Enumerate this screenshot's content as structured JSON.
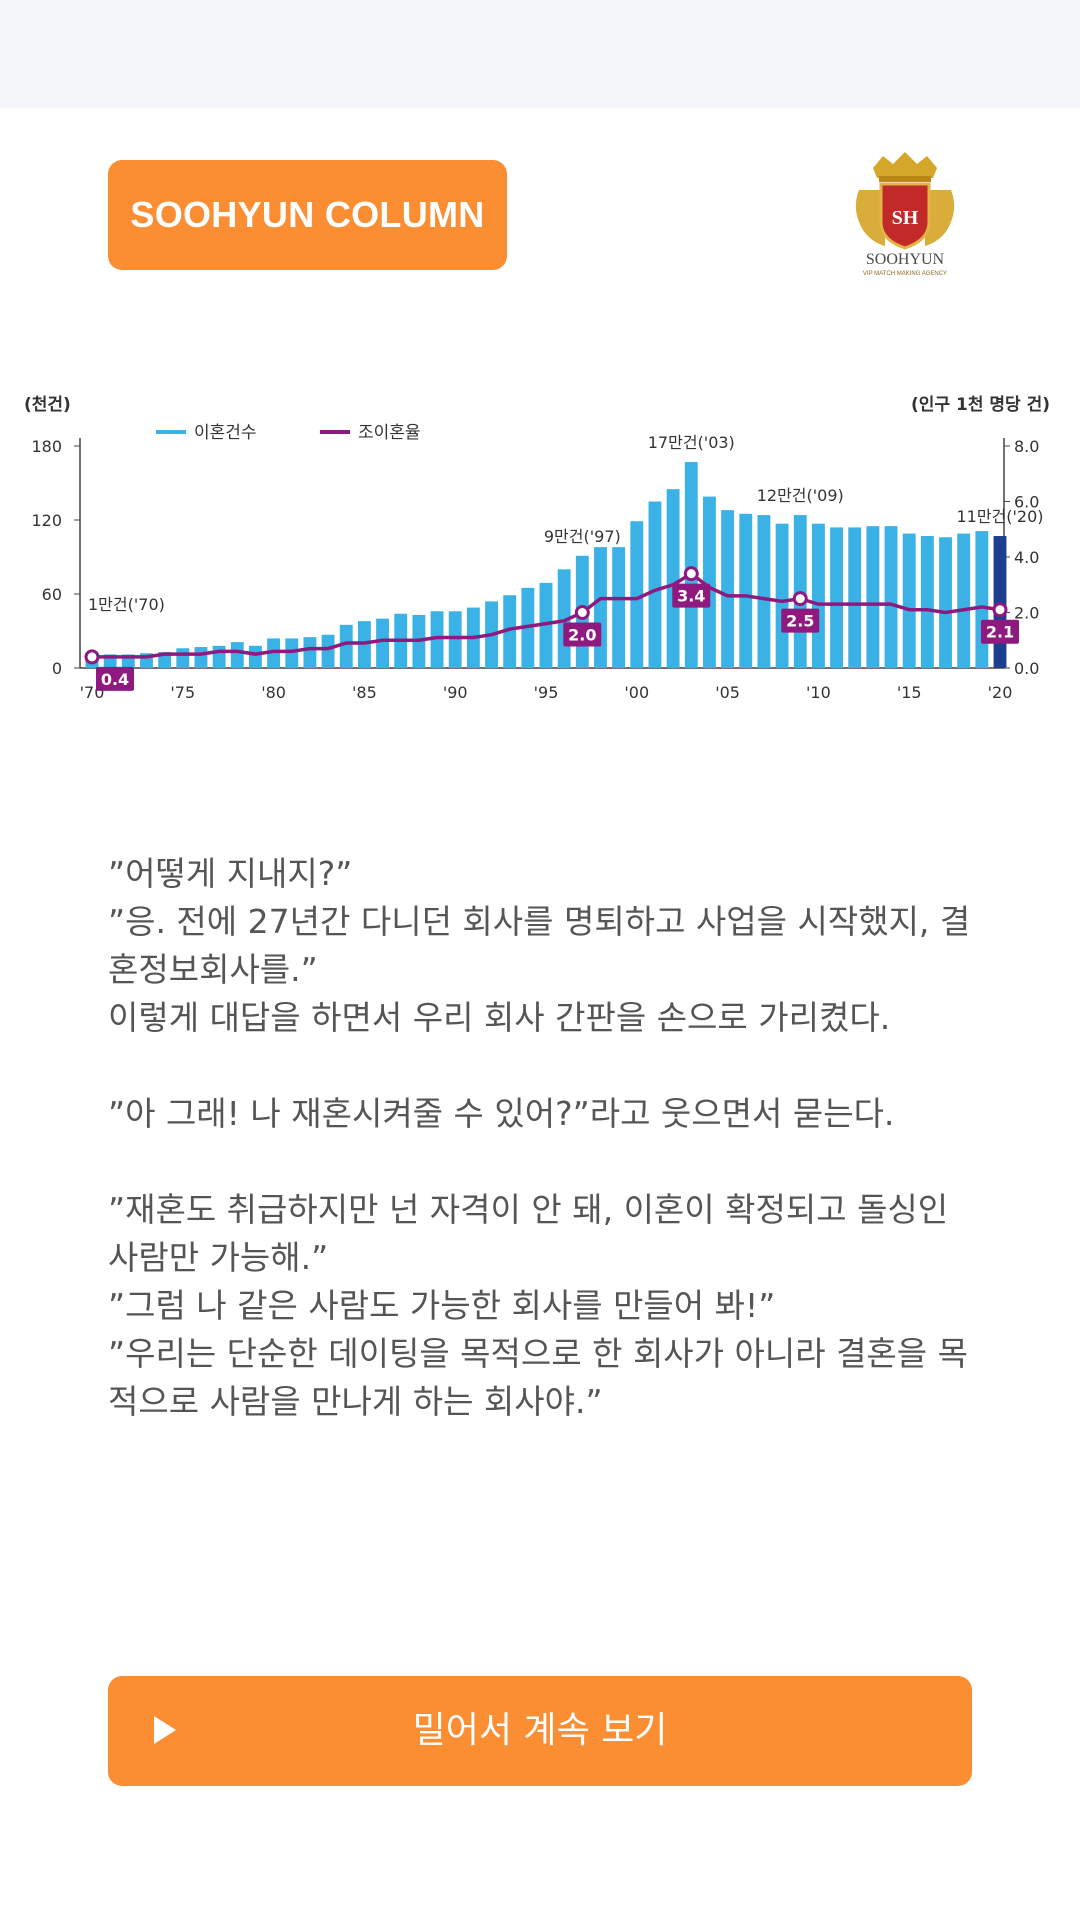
{
  "header": {
    "badge_label": "SOOHYUN COLUMN",
    "logo_monogram": "SH",
    "logo_name": "SOOHYUN",
    "logo_tagline": "VIP MATCH MAKING AGENCY"
  },
  "chart_data": {
    "type": "bar",
    "left_unit": "(천건)",
    "right_unit": "(인구 1천 명당 건)",
    "legend": [
      "이혼건수",
      "조이혼율"
    ],
    "x": [
      1970,
      1971,
      1972,
      1973,
      1974,
      1975,
      1976,
      1977,
      1978,
      1979,
      1980,
      1981,
      1982,
      1983,
      1984,
      1985,
      1986,
      1987,
      1988,
      1989,
      1990,
      1991,
      1992,
      1993,
      1994,
      1995,
      1996,
      1997,
      1998,
      1999,
      2000,
      2001,
      2002,
      2003,
      2004,
      2005,
      2006,
      2007,
      2008,
      2009,
      2010,
      2011,
      2012,
      2013,
      2014,
      2015,
      2016,
      2017,
      2018,
      2019,
      2020
    ],
    "x_tick_labels": [
      "'70",
      "'75",
      "'80",
      "'85",
      "'90",
      "'95",
      "'00",
      "'05",
      "'10",
      "'15",
      "'20"
    ],
    "series": [
      {
        "name": "이혼건수",
        "axis": "left",
        "values": [
          12,
          11,
          11,
          12,
          13,
          16,
          17,
          18,
          21,
          18,
          24,
          24,
          25,
          27,
          35,
          38,
          40,
          44,
          43,
          46,
          46,
          49,
          54,
          59,
          65,
          69,
          80,
          91,
          98,
          98,
          119,
          135,
          145,
          167,
          139,
          128,
          125,
          124,
          117,
          124,
          117,
          114,
          114,
          115,
          115,
          109,
          107,
          106,
          109,
          111,
          107
        ]
      },
      {
        "name": "조이혼율",
        "axis": "right",
        "values": [
          0.4,
          0.4,
          0.4,
          0.4,
          0.5,
          0.5,
          0.5,
          0.6,
          0.6,
          0.5,
          0.6,
          0.6,
          0.7,
          0.7,
          0.9,
          0.9,
          1.0,
          1.0,
          1.0,
          1.1,
          1.1,
          1.1,
          1.2,
          1.4,
          1.5,
          1.6,
          1.7,
          2.0,
          2.5,
          2.5,
          2.5,
          2.8,
          3.0,
          3.4,
          2.9,
          2.6,
          2.6,
          2.5,
          2.4,
          2.5,
          2.3,
          2.3,
          2.3,
          2.3,
          2.3,
          2.1,
          2.1,
          2.0,
          2.1,
          2.2,
          2.1
        ]
      }
    ],
    "bar_annotations": [
      {
        "x": 1970,
        "label": "1만건('70)"
      },
      {
        "x": 1997,
        "label": "9만건('97)"
      },
      {
        "x": 2003,
        "label": "17만건('03)"
      },
      {
        "x": 2009,
        "label": "12만건('09)"
      },
      {
        "x": 2020,
        "label": "11만건('20)"
      }
    ],
    "line_annotations": [
      {
        "x": 1970,
        "label": "0.4"
      },
      {
        "x": 1997,
        "label": "2.0"
      },
      {
        "x": 2003,
        "label": "3.4"
      },
      {
        "x": 2009,
        "label": "2.5"
      },
      {
        "x": 2020,
        "label": "2.1"
      }
    ],
    "left_ylim": [
      0,
      180
    ],
    "left_ticks": [
      "0",
      "60",
      "120",
      "180"
    ],
    "right_ylim": [
      0,
      8
    ],
    "right_ticks": [
      "0.0",
      "2.0",
      "4.0",
      "6.0",
      "8.0"
    ],
    "colors": {
      "bar": "#3bb2e6",
      "bar_last": "#1c3f8f",
      "line": "#8e1a80"
    }
  },
  "article": {
    "paragraphs": [
      "”어떻게 지내지?”",
      "”응. 전에 27년간 다니던 회사를 명퇴하고 사업을 시작했지, 결혼정보회사를.”",
      "이렇게 대답을 하면서 우리 회사 간판을 손으로 가리켰다.",
      "",
      "”아 그래! 나 재혼시켜줄 수 있어?”라고 웃으면서 묻는다.",
      "",
      "”재혼도 취급하지만 넌 자격이 안 돼, 이혼이 확정되고 돌싱인 사람만 가능해.”",
      "”그럼 나 같은 사람도 가능한 회사를 만들어 봐!”",
      "”우리는 단순한 데이팅을 목적으로 한 회사가 아니라 결혼을 목적으로 사람을 만나게 하는 회사야.”"
    ]
  },
  "cta": {
    "label": "밀어서 계속 보기",
    "icon": "play-icon"
  }
}
